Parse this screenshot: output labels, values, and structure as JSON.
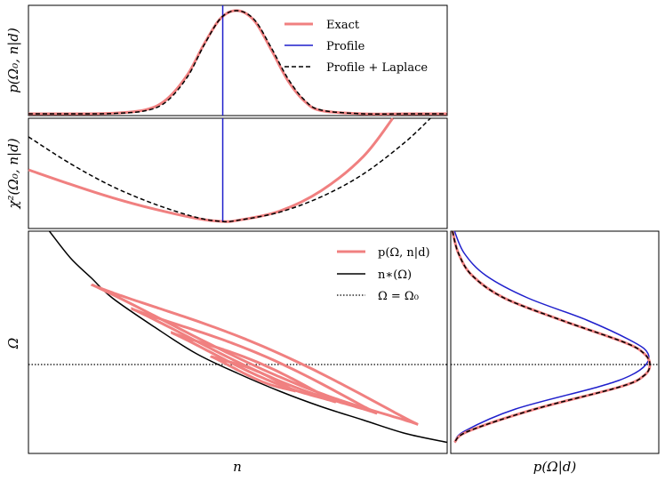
{
  "chart_data": [
    {
      "type": "line",
      "panel": "top",
      "ylabel": "p(Ω₀, n|d)",
      "xlabel": "",
      "legend": {
        "position": "top-right",
        "entries": [
          "Exact",
          "Profile",
          "Profile + Laplace"
        ]
      },
      "x_range": [
        0,
        1
      ],
      "series": [
        {
          "name": "Exact",
          "color": "#f08080",
          "style": "solid",
          "x": [
            0.0,
            0.1,
            0.2,
            0.28,
            0.33,
            0.38,
            0.42,
            0.46,
            0.5,
            0.54,
            0.58,
            0.62,
            0.66,
            0.7,
            0.8,
            0.9,
            1.0
          ],
          "y": [
            0.0,
            0.0,
            0.005,
            0.04,
            0.14,
            0.38,
            0.68,
            0.93,
            1.0,
            0.9,
            0.62,
            0.32,
            0.12,
            0.03,
            0.0,
            0.0,
            0.0
          ]
        },
        {
          "name": "Profile",
          "color": "#1f1fcc",
          "style": "vertical",
          "x": [
            0.464
          ],
          "y": [
            1.0
          ]
        },
        {
          "name": "Profile + Laplace",
          "color": "#000000",
          "style": "dashed",
          "x": [
            0.0,
            0.1,
            0.2,
            0.28,
            0.33,
            0.38,
            0.42,
            0.46,
            0.5,
            0.54,
            0.58,
            0.62,
            0.66,
            0.7,
            0.8,
            0.9,
            1.0
          ],
          "y": [
            0.0,
            0.0,
            0.003,
            0.03,
            0.12,
            0.36,
            0.67,
            0.93,
            1.0,
            0.91,
            0.64,
            0.34,
            0.13,
            0.035,
            0.0,
            0.0,
            0.0
          ]
        }
      ]
    },
    {
      "type": "line",
      "panel": "middle",
      "ylabel": "χ²(Ω₀, n|d)",
      "xlabel": "",
      "x_range": [
        0,
        1
      ],
      "y_range": [
        0,
        1
      ],
      "series": [
        {
          "name": "Exact",
          "color": "#f08080",
          "style": "solid",
          "x": [
            0.0,
            0.1,
            0.2,
            0.3,
            0.4,
            0.46,
            0.5,
            0.6,
            0.7,
            0.8,
            0.87
          ],
          "y": [
            0.5,
            0.36,
            0.23,
            0.12,
            0.03,
            0.0,
            0.01,
            0.1,
            0.3,
            0.63,
            1.0
          ]
        },
        {
          "name": "Profile",
          "color": "#1f1fcc",
          "style": "vertical",
          "x": [
            0.464
          ],
          "y": [
            1.0
          ]
        },
        {
          "name": "Profile + Laplace",
          "color": "#000000",
          "style": "dashed",
          "x": [
            0.0,
            0.1,
            0.2,
            0.3,
            0.4,
            0.46,
            0.5,
            0.6,
            0.7,
            0.8,
            0.9,
            0.96
          ],
          "y": [
            0.82,
            0.56,
            0.34,
            0.17,
            0.04,
            0.0,
            0.01,
            0.09,
            0.24,
            0.46,
            0.77,
            1.0
          ]
        }
      ]
    },
    {
      "type": "line",
      "panel": "bottom-left",
      "xlabel": "n",
      "ylabel": "Ω",
      "legend": {
        "position": "top-right",
        "entries": [
          "p(Ω, n|d)",
          "n∗(Ω)",
          "Ω = Ω₀"
        ]
      },
      "x_range": [
        0,
        1
      ],
      "y_range": [
        0,
        1
      ],
      "series": [
        {
          "name": "n∗(Ω)",
          "color": "#000000",
          "style": "solid",
          "x": [
            0.05,
            0.1,
            0.15,
            0.2,
            0.3,
            0.4,
            0.5,
            0.6,
            0.7,
            0.8,
            0.9,
            1.0
          ],
          "y": [
            1.0,
            0.88,
            0.79,
            0.7,
            0.57,
            0.45,
            0.36,
            0.28,
            0.21,
            0.15,
            0.09,
            0.05
          ]
        },
        {
          "name": "Ω = Ω₀",
          "color": "#000000",
          "style": "dotted",
          "x": [
            0.0,
            1.0
          ],
          "y": [
            0.4,
            0.4
          ]
        },
        {
          "name": "p(Ω, n|d) contours",
          "color": "#f08080",
          "style": "contour",
          "levels": 4,
          "center": [
            0.53,
            0.33
          ]
        }
      ]
    },
    {
      "type": "line",
      "panel": "bottom-right",
      "xlabel": "p(Ω|d)",
      "ylabel": "",
      "x_range": [
        0,
        1
      ],
      "y_range": [
        0,
        1
      ],
      "series": [
        {
          "name": "Exact",
          "color": "#f08080",
          "style": "solid",
          "y": [
            1.0,
            0.9,
            0.8,
            0.7,
            0.6,
            0.5,
            0.45,
            0.4,
            0.35,
            0.3,
            0.2,
            0.1,
            0.05
          ],
          "x": [
            0.0,
            0.03,
            0.1,
            0.26,
            0.55,
            0.87,
            0.97,
            1.0,
            0.97,
            0.85,
            0.42,
            0.08,
            0.01
          ]
        },
        {
          "name": "Profile",
          "color": "#1f1fcc",
          "style": "solid",
          "y": [
            1.0,
            0.9,
            0.8,
            0.7,
            0.6,
            0.5,
            0.45,
            0.4,
            0.35,
            0.3,
            0.2,
            0.1,
            0.05
          ],
          "x": [
            0.01,
            0.06,
            0.17,
            0.38,
            0.68,
            0.92,
            0.99,
            0.98,
            0.9,
            0.74,
            0.32,
            0.06,
            0.01
          ]
        },
        {
          "name": "Profile + Laplace",
          "color": "#000000",
          "style": "dashed",
          "y": [
            1.0,
            0.9,
            0.8,
            0.7,
            0.6,
            0.5,
            0.45,
            0.4,
            0.35,
            0.3,
            0.2,
            0.1,
            0.05
          ],
          "x": [
            0.0,
            0.03,
            0.1,
            0.26,
            0.55,
            0.87,
            0.97,
            1.0,
            0.97,
            0.85,
            0.42,
            0.08,
            0.01
          ]
        },
        {
          "name": "Ω = Ω₀",
          "color": "#000000",
          "style": "dotted",
          "y": [
            0.4,
            0.4
          ],
          "x": [
            0.0,
            1.0
          ]
        }
      ]
    }
  ],
  "labels": {
    "top_ylabel": "p(Ω₀, n|d)",
    "mid_ylabel": "χ²(Ω₀, n|d)",
    "bottom_ylabel": "Ω",
    "bottom_xlabel": "n",
    "right_xlabel": "p(Ω|d)"
  },
  "legend_top": [
    "Exact",
    "Profile",
    "Profile  +  Laplace"
  ],
  "legend_bottom": [
    "p(Ω, n|d)",
    "n∗(Ω)",
    "Ω = Ω₀"
  ],
  "colors": {
    "exact": "#f08080",
    "profile": "#1f1fcc",
    "laplace": "#000000"
  }
}
